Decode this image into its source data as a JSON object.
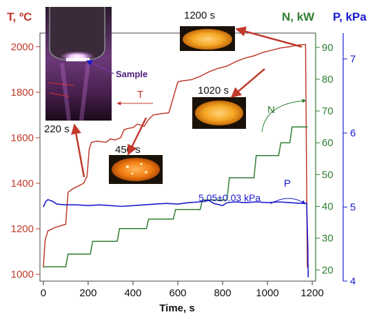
{
  "chart_data": {
    "type": "line",
    "xlabel": "Time, s",
    "x_ticks": [
      0,
      200,
      400,
      600,
      800,
      1000,
      1200
    ],
    "xlim": [
      -15,
      1215
    ],
    "axes": [
      {
        "id": "T",
        "label": "T, ºC",
        "side": "left",
        "color": "#c0392b",
        "lim": [
          970,
          2060
        ],
        "ticks": [
          1000,
          1200,
          1400,
          1600,
          1800,
          2000
        ]
      },
      {
        "id": "N",
        "label": "N, kW",
        "side": "right",
        "color": "#2e7d32",
        "lim": [
          16.5,
          94.5
        ],
        "ticks": [
          20,
          30,
          40,
          50,
          60,
          70,
          80,
          90
        ]
      },
      {
        "id": "P",
        "label": "P, kPa",
        "side": "right",
        "color": "#1a1acc",
        "lim": [
          4.0,
          7.35
        ],
        "ticks": [
          4,
          5,
          6,
          7
        ]
      }
    ],
    "series": [
      {
        "name": "T",
        "axis": "T",
        "color": "#c0392b",
        "points": [
          [
            0,
            1030
          ],
          [
            8,
            1150
          ],
          [
            20,
            1190
          ],
          [
            50,
            1205
          ],
          [
            100,
            1220
          ],
          [
            110,
            1360
          ],
          [
            130,
            1375
          ],
          [
            160,
            1390
          ],
          [
            180,
            1400
          ],
          [
            195,
            1430
          ],
          [
            205,
            1550
          ],
          [
            215,
            1580
          ],
          [
            240,
            1585
          ],
          [
            280,
            1580
          ],
          [
            300,
            1595
          ],
          [
            320,
            1590
          ],
          [
            345,
            1600
          ],
          [
            360,
            1635
          ],
          [
            375,
            1640
          ],
          [
            400,
            1645
          ],
          [
            420,
            1660
          ],
          [
            450,
            1650
          ],
          [
            470,
            1680
          ],
          [
            490,
            1700
          ],
          [
            520,
            1705
          ],
          [
            560,
            1710
          ],
          [
            575,
            1760
          ],
          [
            600,
            1845
          ],
          [
            620,
            1850
          ],
          [
            660,
            1855
          ],
          [
            700,
            1870
          ],
          [
            740,
            1890
          ],
          [
            780,
            1905
          ],
          [
            820,
            1915
          ],
          [
            860,
            1935
          ],
          [
            900,
            1950
          ],
          [
            940,
            1960
          ],
          [
            980,
            1975
          ],
          [
            1020,
            1985
          ],
          [
            1060,
            1995
          ],
          [
            1100,
            2000
          ],
          [
            1140,
            2008
          ],
          [
            1170,
            2010
          ],
          [
            1178,
            1030
          ]
        ]
      },
      {
        "name": "N",
        "axis": "N",
        "color": "#2e7d32",
        "points": [
          [
            0,
            21
          ],
          [
            100,
            21
          ],
          [
            110,
            25
          ],
          [
            210,
            25
          ],
          [
            220,
            29
          ],
          [
            330,
            29
          ],
          [
            340,
            33
          ],
          [
            460,
            33
          ],
          [
            470,
            36
          ],
          [
            580,
            36
          ],
          [
            590,
            39
          ],
          [
            700,
            39
          ],
          [
            710,
            42
          ],
          [
            820,
            42
          ],
          [
            830,
            49
          ],
          [
            940,
            49
          ],
          [
            950,
            56
          ],
          [
            1050,
            56
          ],
          [
            1060,
            60
          ],
          [
            1100,
            60
          ],
          [
            1110,
            65
          ],
          [
            1180,
            65
          ]
        ]
      },
      {
        "name": "P",
        "axis": "P",
        "color": "#1a1acc",
        "points": [
          [
            0,
            5.0
          ],
          [
            10,
            5.07
          ],
          [
            20,
            5.1
          ],
          [
            40,
            5.08
          ],
          [
            60,
            5.04
          ],
          [
            100,
            5.03
          ],
          [
            150,
            5.03
          ],
          [
            200,
            5.02
          ],
          [
            250,
            5.03
          ],
          [
            300,
            5.02
          ],
          [
            350,
            5.01
          ],
          [
            400,
            5.02
          ],
          [
            450,
            5.03
          ],
          [
            500,
            5.04
          ],
          [
            550,
            5.05
          ],
          [
            600,
            5.04
          ],
          [
            650,
            5.06
          ],
          [
            700,
            5.07
          ],
          [
            740,
            5.09
          ],
          [
            760,
            5.05
          ],
          [
            800,
            5.02
          ],
          [
            820,
            5.06
          ],
          [
            860,
            5.07
          ],
          [
            900,
            5.06
          ],
          [
            950,
            5.07
          ],
          [
            1000,
            5.06
          ],
          [
            1050,
            5.07
          ],
          [
            1100,
            5.06
          ],
          [
            1150,
            5.05
          ],
          [
            1175,
            5.05
          ],
          [
            1180,
            4.5
          ],
          [
            1182,
            4.05
          ]
        ]
      }
    ],
    "annotations": [
      {
        "text": "T",
        "color": "#c0392b"
      },
      {
        "text": "N",
        "color": "#2e7d32"
      },
      {
        "text": "P",
        "color": "#1a1acc"
      },
      {
        "text": "5,05±0.03 kPa",
        "color": "#1a1acc"
      }
    ],
    "photo_labels": {
      "sample": "Sample",
      "t220": "220 s",
      "t450": "450 s",
      "t1020": "1020 s",
      "t1200": "1200 s"
    }
  }
}
